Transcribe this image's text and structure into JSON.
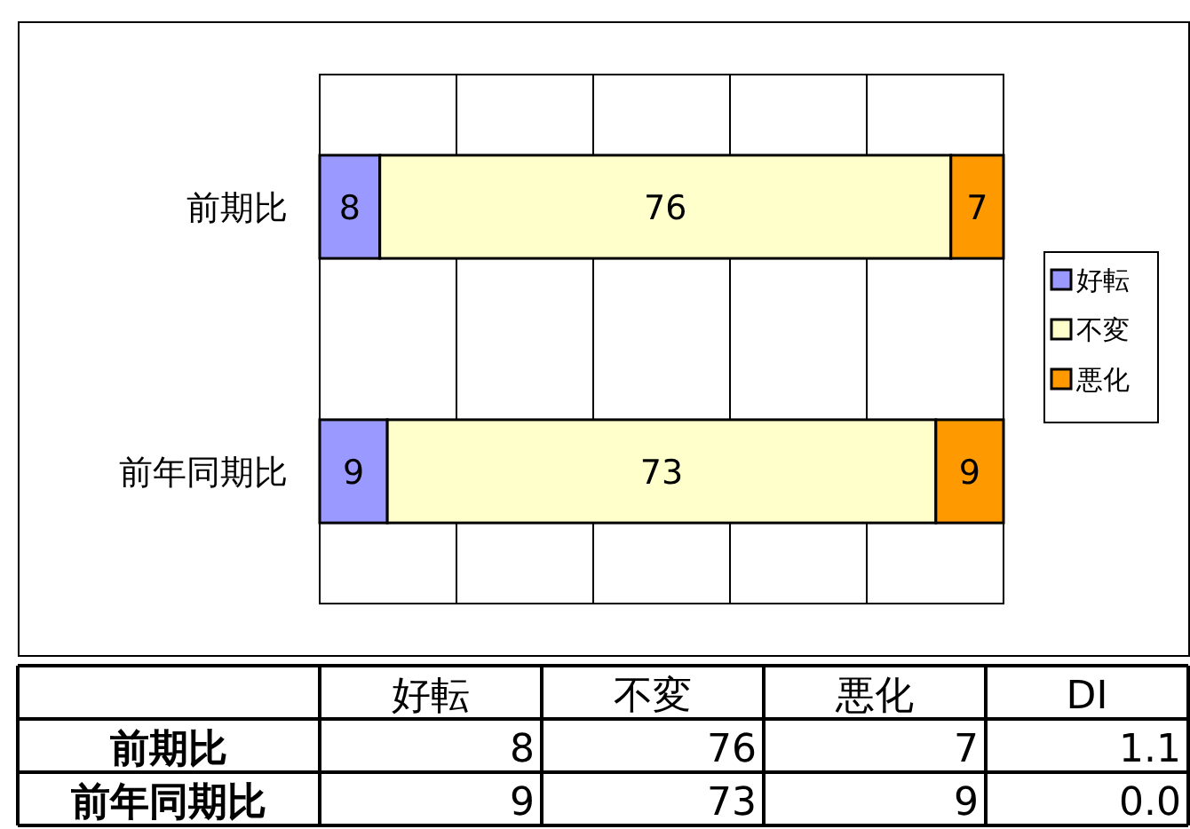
{
  "chart_data": {
    "type": "bar",
    "orientation": "horizontal",
    "stacked": true,
    "categories": [
      "前期比",
      "前年同期比"
    ],
    "series": [
      {
        "name": "好転",
        "color": "#9999ff",
        "values": [
          8,
          9
        ]
      },
      {
        "name": "不変",
        "color": "#ffffcc",
        "values": [
          76,
          73
        ]
      },
      {
        "name": "悪化",
        "color": "#ff9900",
        "values": [
          7,
          9
        ]
      }
    ],
    "xlim": [
      0,
      91
    ],
    "xticks": [
      {
        "value": 0,
        "label": null
      },
      {
        "value": 18.2,
        "label": null
      },
      {
        "value": 36.4,
        "label": null
      },
      {
        "value": 54.6,
        "label": null
      },
      {
        "value": 72.8,
        "label": null
      },
      {
        "value": 91,
        "label": null
      }
    ],
    "tick_labels": "y",
    "grid": "x",
    "legend": "right",
    "data_labels": true,
    "annotations": [
      "DI",
      "8",
      "76",
      "7",
      "1.1",
      "9",
      "73",
      "9",
      "0.0"
    ]
  }
}
